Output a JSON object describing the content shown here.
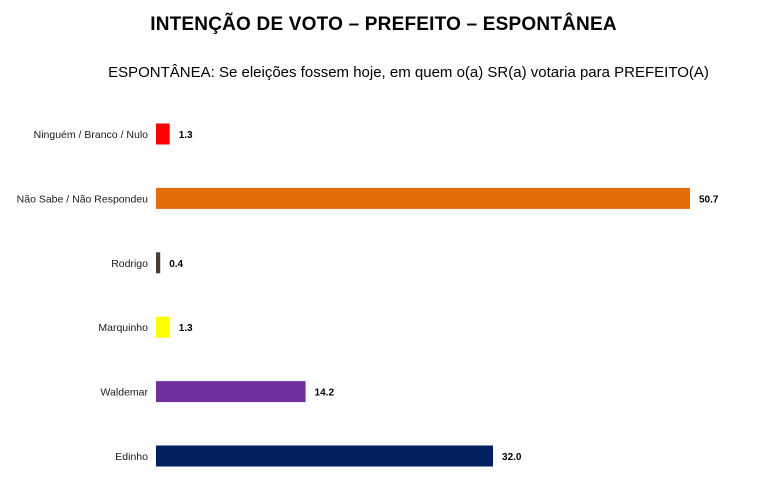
{
  "chart_data": {
    "type": "bar",
    "orientation": "horizontal",
    "title": "INTENÇÃO DE VOTO – PREFEITO – ESPONTÂNEA",
    "subtitle": "ESPONTÂNEA: Se eleições fossem hoje, em quem o(a) SR(a) votaria para PREFEITO(A)",
    "categories": [
      "Ninguém / Branco / Nulo",
      "Não Sabe / Não Respondeu",
      "Rodrigo",
      "Marquinho",
      "Waldemar",
      "Edinho"
    ],
    "values": [
      1.3,
      50.7,
      0.4,
      1.3,
      14.2,
      32.0
    ],
    "value_labels": [
      "1.3",
      "50.7",
      "0.4",
      "1.3",
      "14.2",
      "32.0"
    ],
    "colors": [
      "#ff0000",
      "#e46c0a",
      "#4a3c31",
      "#ffff00",
      "#7030a0",
      "#002060"
    ],
    "xlim": [
      0,
      50.7
    ],
    "grid": false,
    "legend": "none"
  }
}
